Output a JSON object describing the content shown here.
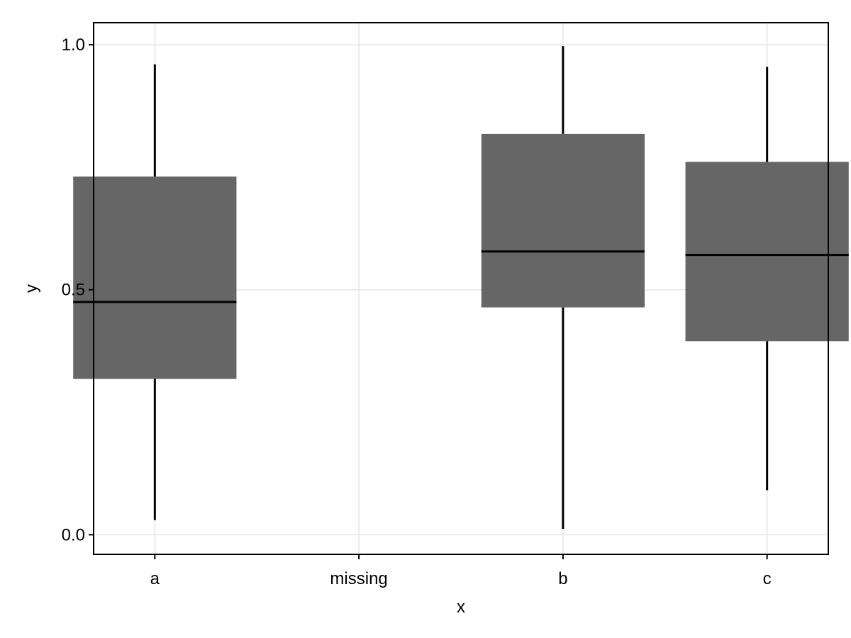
{
  "chart_data": {
    "type": "boxplot",
    "title": "",
    "xlabel": "x",
    "ylabel": "y",
    "categories": [
      "a",
      "missing",
      "b",
      "c"
    ],
    "ylim": [
      -0.04,
      1.045
    ],
    "yticks": [
      "0.0",
      "0.5",
      "1.0"
    ],
    "ytick_values": [
      0.0,
      0.5,
      1.0
    ],
    "grid": true,
    "box_color": "#666666",
    "line_color": "#000000",
    "grid_color": "#e5e5e5",
    "boxes": [
      {
        "category": "a",
        "min": 0.03,
        "q1": 0.318,
        "median": 0.475,
        "q3": 0.731,
        "max": 0.96
      },
      {
        "category": "b",
        "min": 0.012,
        "q1": 0.464,
        "median": 0.578,
        "q3": 0.818,
        "max": 0.997
      },
      {
        "category": "c",
        "min": 0.091,
        "q1": 0.395,
        "median": 0.571,
        "q3": 0.761,
        "max": 0.955
      }
    ]
  }
}
